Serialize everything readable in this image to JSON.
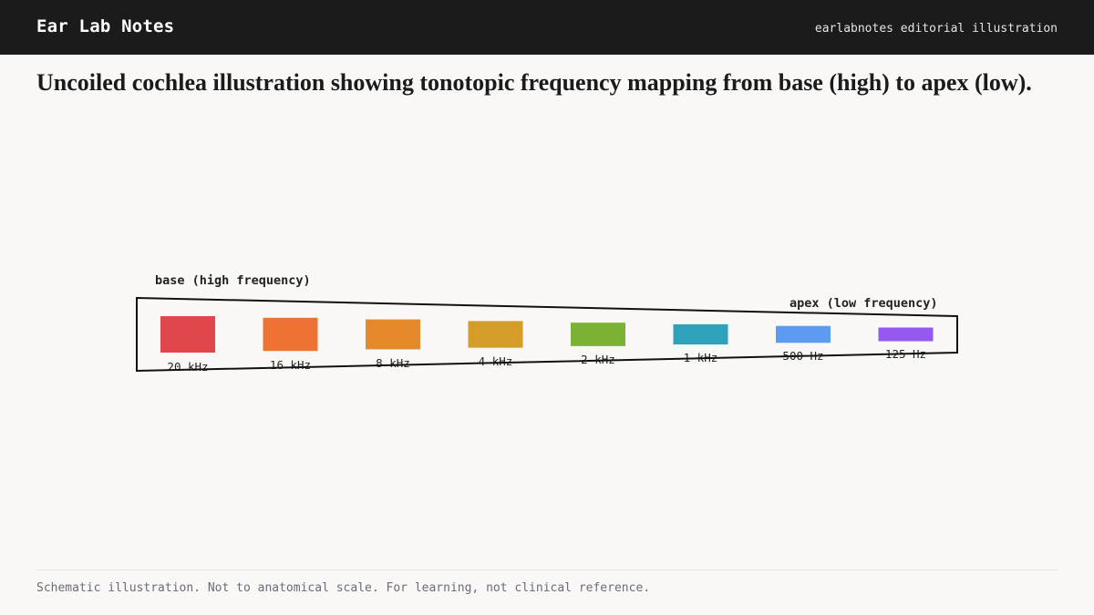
{
  "header": {
    "brand": "Ear Lab Notes",
    "tagline": "earlabnotes editorial illustration"
  },
  "headline": "Uncoiled cochlea illustration showing tonotopic frequency mapping from base (high) to apex (low).",
  "diagram": {
    "base_label": "base (high frequency)",
    "apex_label": "apex (low frequency)",
    "bands": [
      {
        "label": "20 kHz",
        "color": "#e0474c"
      },
      {
        "label": "16 kHz",
        "color": "#ed7233"
      },
      {
        "label": "8 kHz",
        "color": "#e58a2a"
      },
      {
        "label": "4 kHz",
        "color": "#d49d2a"
      },
      {
        "label": "2 kHz",
        "color": "#7cb233"
      },
      {
        "label": "1 kHz",
        "color": "#2ea2bb"
      },
      {
        "label": "500 Hz",
        "color": "#5b9bf2"
      },
      {
        "label": "125 Hz",
        "color": "#9559ed"
      }
    ]
  },
  "footer": {
    "note": "Schematic illustration. Not to anatomical scale. For learning, not clinical reference."
  }
}
